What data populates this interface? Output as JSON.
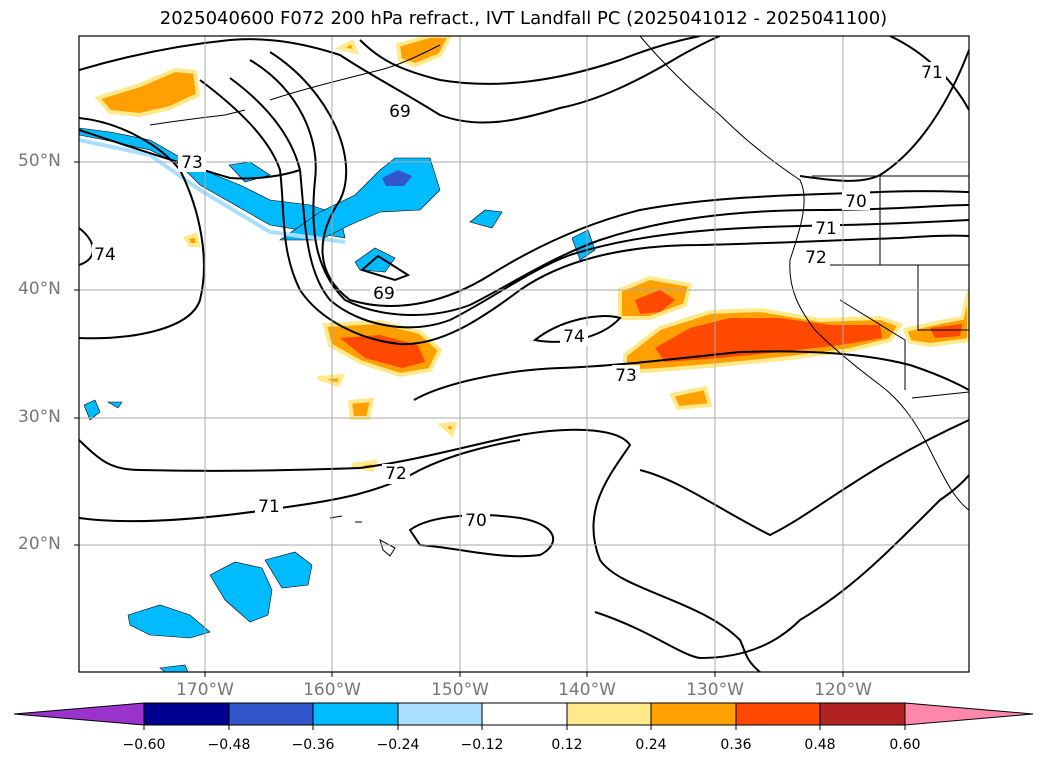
{
  "title": "2025040600 F072 200 hPa refract., IVT Landfall PC (2025041012 - 2025041100)",
  "latitude_labels": [
    "50°N",
    "40°N",
    "30°N",
    "20°N"
  ],
  "longitude_labels": [
    "170°W",
    "160°W",
    "150°W",
    "140°W",
    "130°W",
    "120°W"
  ],
  "contour_labels": [
    "69",
    "69",
    "70",
    "70",
    "71",
    "71",
    "71",
    "72",
    "72",
    "73",
    "73",
    "74",
    "74"
  ],
  "colorbar": {
    "ticks": [
      "−0.60",
      "−0.48",
      "−0.36",
      "−0.24",
      "−0.12",
      "0.12",
      "0.24",
      "0.36",
      "0.48",
      "0.60"
    ],
    "colors": [
      "#9933cc",
      "#000090",
      "#3355cc",
      "#00bbff",
      "#aadeff",
      "#ffffff",
      "#ffe98a",
      "#ffa000",
      "#ff4800",
      "#b22222",
      "#ff88aa"
    ]
  },
  "chart_data": {
    "type": "map",
    "title": "2025040600 F072 200 hPa refract., IVT Landfall PC (2025041012 - 2025041100)",
    "lon_range_deg": [
      -180,
      -110
    ],
    "lat_range_deg": [
      10,
      60
    ],
    "lat_ticks": [
      "50°N",
      "40°N",
      "30°N",
      "20°N"
    ],
    "lon_ticks": [
      "170°W",
      "160°W",
      "150°W",
      "140°W",
      "130°W",
      "120°W"
    ],
    "grid": true,
    "contour_variable": "200 hPa refractivity",
    "contour_levels_labeled": [
      69,
      70,
      71,
      72,
      73,
      74
    ],
    "shading_variable": "IVT Landfall PC",
    "colorbar_bounds": [
      -0.6,
      -0.48,
      -0.36,
      -0.24,
      -0.12,
      0.12,
      0.24,
      0.36,
      0.48,
      0.6
    ],
    "colorbar_extend": "both"
  }
}
